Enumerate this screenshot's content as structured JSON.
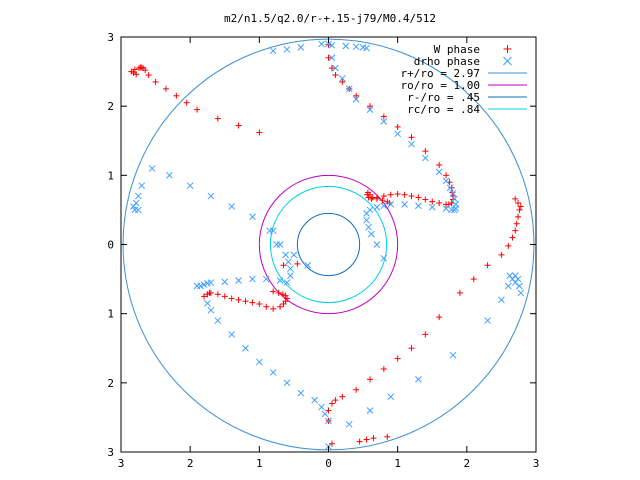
{
  "chart_data": {
    "type": "scatter",
    "title": "m2/n1.5/q2.0/r-+.15-j79/M0.4/512",
    "xlabel": "",
    "ylabel": "",
    "xlim": [
      -3,
      3
    ],
    "ylim": [
      -3,
      3
    ],
    "x_ticks": [
      -3,
      -2,
      -1,
      0,
      1,
      2,
      3
    ],
    "x_tick_labels": [
      "3",
      "2",
      "1",
      "0",
      "1",
      "2",
      "3"
    ],
    "y_ticks": [
      3,
      2,
      1,
      0,
      -1,
      -2,
      -3
    ],
    "y_tick_labels": [
      "3",
      "2",
      "1",
      "0",
      "1",
      "2",
      "3"
    ],
    "grid": false,
    "legend_position": "top-right",
    "legend": [
      {
        "label": "W phase",
        "kind": "marker",
        "marker": "plus",
        "color": "#ff0000"
      },
      {
        "label": "drho phase",
        "kind": "marker",
        "marker": "cross",
        "color": "#3f9fff"
      },
      {
        "label": "r+/ro = 2.97",
        "kind": "line",
        "color": "#3c8fd6"
      },
      {
        "label": "ro/ro = 1.00",
        "kind": "line",
        "color": "#c000c0"
      },
      {
        "label": "r-/ro = .45",
        "kind": "line",
        "color": "#0f6fbf"
      },
      {
        "label": "rc/ro = .84",
        "kind": "line",
        "color": "#00d0e0"
      }
    ],
    "circles": [
      {
        "name": "r+/ro = 2.97",
        "radius": 2.97,
        "color": "#3c8fd6"
      },
      {
        "name": "ro/ro = 1.00",
        "radius": 1.0,
        "color": "#c000c0"
      },
      {
        "name": "r-/ro = .45",
        "radius": 0.45,
        "color": "#0f6fbf"
      },
      {
        "name": "rc/ro = .84",
        "radius": 0.84,
        "color": "#00d0e0"
      }
    ],
    "series": [
      {
        "name": "W phase",
        "color": "#ff0000",
        "marker": "plus",
        "x": [
          0.0,
          0.0,
          0.05,
          0.1,
          0.2,
          0.3,
          0.4,
          0.6,
          0.8,
          1.0,
          1.2,
          1.4,
          1.6,
          1.7,
          1.75,
          1.78,
          1.79,
          1.8,
          1.8,
          1.78,
          1.74,
          1.7,
          1.6,
          1.5,
          1.4,
          1.3,
          1.2,
          1.1,
          1.0,
          0.9,
          0.8,
          0.7,
          0.62,
          0.58,
          0.56,
          0.57,
          0.6,
          0.64,
          0.7,
          0.78,
          0.85,
          0.88,
          -0.45,
          -0.65,
          -1.0,
          -1.3,
          -1.6,
          -1.9,
          -2.05,
          -2.2,
          -2.35,
          -2.5,
          -2.6,
          -2.65,
          -2.68,
          -2.7,
          -2.72,
          -2.74,
          -2.8,
          -2.85,
          -2.82,
          -2.78,
          -1.8,
          -1.75,
          -1.72,
          -1.7,
          -1.6,
          -1.5,
          -1.4,
          -1.3,
          -1.2,
          -1.1,
          -1.0,
          -0.9,
          -0.8,
          -0.7,
          -0.65,
          -0.62,
          -0.6,
          -0.62,
          -0.66,
          -0.72,
          -0.8,
          -0.0,
          0.0,
          0.05,
          0.1,
          0.2,
          0.4,
          0.6,
          0.8,
          1.0,
          1.2,
          1.4,
          1.6,
          1.9,
          2.1,
          2.3,
          2.5,
          2.6,
          2.66,
          2.7,
          2.72,
          2.74,
          2.76,
          2.78,
          2.74,
          2.7,
          0.05,
          0.45,
          0.55,
          0.65,
          0.85
        ],
        "y": [
          2.89,
          2.7,
          2.55,
          2.45,
          2.35,
          2.25,
          2.15,
          2.0,
          1.85,
          1.7,
          1.55,
          1.35,
          1.15,
          1.0,
          0.9,
          0.82,
          0.75,
          0.7,
          0.65,
          0.6,
          0.58,
          0.58,
          0.6,
          0.62,
          0.65,
          0.68,
          0.7,
          0.72,
          0.73,
          0.72,
          0.7,
          0.68,
          0.66,
          0.68,
          0.72,
          0.75,
          0.72,
          0.68,
          0.66,
          0.64,
          0.62,
          0.6,
          -0.28,
          -0.3,
          1.62,
          1.72,
          1.82,
          1.95,
          2.05,
          2.15,
          2.25,
          2.35,
          2.45,
          2.52,
          2.55,
          2.56,
          2.56,
          2.55,
          2.53,
          2.5,
          2.48,
          2.46,
          -0.75,
          -0.72,
          -0.7,
          -0.7,
          -0.72,
          -0.75,
          -0.78,
          -0.8,
          -0.82,
          -0.84,
          -0.86,
          -0.9,
          -0.93,
          -0.9,
          -0.86,
          -0.82,
          -0.78,
          -0.74,
          -0.72,
          -0.7,
          -0.68,
          -2.55,
          -2.4,
          -2.3,
          -2.25,
          -2.2,
          -2.1,
          -1.95,
          -1.8,
          -1.65,
          -1.5,
          -1.3,
          -1.05,
          -0.7,
          -0.5,
          -0.3,
          -0.15,
          -0.02,
          0.1,
          0.2,
          0.3,
          0.4,
          0.5,
          0.55,
          0.6,
          0.66,
          -2.88,
          -2.85,
          -2.82,
          -2.8,
          -2.78
        ]
      },
      {
        "name": "drho phase",
        "color": "#3f9fff",
        "marker": "cross",
        "x": [
          0.0,
          0.05,
          0.1,
          0.2,
          0.3,
          0.4,
          0.6,
          0.8,
          1.0,
          1.2,
          1.4,
          1.6,
          1.7,
          1.76,
          1.8,
          1.82,
          1.84,
          1.84,
          1.82,
          1.78,
          1.7,
          1.5,
          1.3,
          1.1,
          0.9,
          0.8,
          0.7,
          0.6,
          0.55,
          0.55,
          0.58,
          0.62,
          0.7,
          0.8,
          -0.3,
          -0.5,
          -0.75,
          -0.85,
          -1.1,
          -1.4,
          -1.7,
          -2.0,
          -2.3,
          -2.55,
          -2.7,
          -2.75,
          -2.78,
          -2.8,
          -2.82,
          -2.75,
          -1.9,
          -1.85,
          -1.8,
          -1.75,
          -1.7,
          -1.5,
          -1.3,
          -1.1,
          -0.9,
          -0.7,
          -0.6,
          -0.55,
          -0.55,
          -0.58,
          -0.62,
          -0.7,
          -0.8,
          -0.0,
          -0.05,
          -0.1,
          -0.2,
          -0.4,
          -0.6,
          -0.8,
          -1.0,
          -1.2,
          -1.4,
          -1.6,
          -1.7,
          -1.75,
          0.0,
          0.3,
          0.6,
          0.9,
          1.3,
          1.8,
          2.3,
          2.5,
          2.6,
          2.66,
          2.7,
          2.74,
          2.76,
          2.78,
          2.7,
          2.62,
          -0.1,
          -0.4,
          -0.6,
          -0.8,
          0.05,
          0.25,
          0.4,
          0.5,
          0.55
        ],
        "y": [
          2.9,
          2.7,
          2.55,
          2.4,
          2.25,
          2.1,
          1.95,
          1.78,
          1.6,
          1.45,
          1.25,
          1.05,
          0.92,
          0.82,
          0.74,
          0.66,
          0.58,
          0.52,
          0.5,
          0.5,
          0.52,
          0.54,
          0.56,
          0.58,
          0.58,
          0.56,
          0.54,
          0.5,
          0.45,
          0.35,
          0.25,
          0.15,
          0.0,
          -0.2,
          -0.3,
          -0.15,
          0.0,
          0.2,
          0.4,
          0.55,
          0.7,
          0.85,
          1.0,
          1.1,
          0.85,
          0.7,
          0.6,
          0.5,
          0.55,
          0.5,
          -0.6,
          -0.6,
          -0.58,
          -0.56,
          -0.55,
          -0.54,
          -0.52,
          -0.5,
          -0.5,
          -0.52,
          -0.55,
          -0.45,
          -0.35,
          -0.25,
          -0.15,
          0.0,
          0.2,
          -2.55,
          -2.45,
          -2.35,
          -2.25,
          -2.15,
          -2.0,
          -1.85,
          -1.7,
          -1.5,
          -1.3,
          -1.1,
          -0.95,
          -0.85,
          -2.92,
          -2.6,
          -2.4,
          -2.2,
          -1.95,
          -1.6,
          -1.1,
          -0.8,
          -0.6,
          -0.5,
          -0.45,
          -0.5,
          -0.6,
          -0.7,
          -0.55,
          -0.45,
          2.9,
          2.85,
          2.82,
          2.8,
          2.88,
          2.87,
          2.86,
          2.85,
          2.84
        ]
      }
    ]
  }
}
